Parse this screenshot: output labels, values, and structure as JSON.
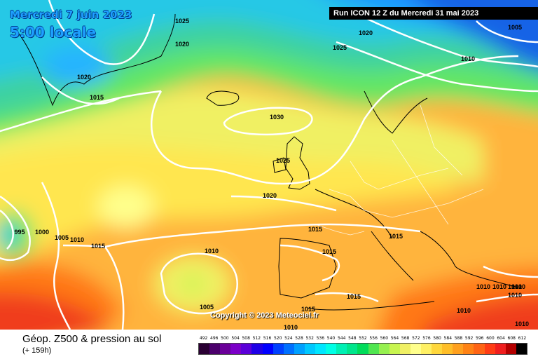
{
  "map_title": {
    "date": "Mercredi 7 juin 2023",
    "time": "5:00 locale"
  },
  "run_info": "Run ICON 12 Z du Mercredi 31 mai 2023",
  "copyright": "Copyright © 2023 Meteociel.fr",
  "footer": {
    "title": "Géop. Z500 & pression au sol",
    "subtitle": "(+ 159h)"
  },
  "legend": {
    "values": [
      "492",
      "496",
      "500",
      "504",
      "508",
      "512",
      "516",
      "520",
      "524",
      "528",
      "532",
      "536",
      "540",
      "544",
      "548",
      "552",
      "556",
      "560",
      "564",
      "568",
      "572",
      "576",
      "580",
      "584",
      "588",
      "592",
      "596",
      "600",
      "604",
      "608",
      "612"
    ],
    "colors": [
      "#2a0033",
      "#4b006b",
      "#6a0099",
      "#7b00c8",
      "#5a00d8",
      "#1e00e6",
      "#0000ff",
      "#0040ff",
      "#0070ff",
      "#00a0ff",
      "#00c8ff",
      "#00e6ff",
      "#00ffe6",
      "#00f0b4",
      "#00e68c",
      "#00dc5a",
      "#50e650",
      "#96f050",
      "#c8f550",
      "#f0f064",
      "#ffff8c",
      "#fff064",
      "#ffd73c",
      "#ffbe28",
      "#ffa01e",
      "#ff8214",
      "#ff6414",
      "#ff3c14",
      "#f01e1e",
      "#b40000",
      "#000000"
    ]
  },
  "pressure_labels": [
    "1025",
    "1020",
    "1015",
    "1020",
    "1025",
    "1020",
    "1005",
    "1010",
    "1030",
    "1025",
    "1020",
    "995",
    "1000",
    "1005",
    "1010",
    "1015",
    "1015",
    "1015",
    "1015",
    "1010",
    "1005",
    "1015",
    "1010",
    "1015",
    "1010",
    "1010",
    "1010",
    "1010",
    "1010",
    "1010",
    "1010"
  ]
}
